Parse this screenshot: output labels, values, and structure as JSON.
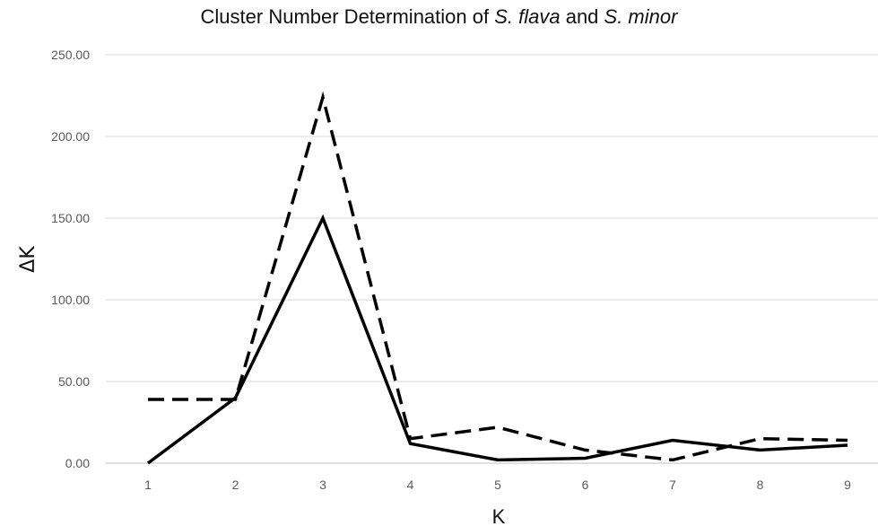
{
  "chart_data": {
    "type": "line",
    "title": {
      "part1": "Cluster Number Determination of ",
      "species1": "S. flava",
      "part2": " and ",
      "species2": "S. minor"
    },
    "xlabel": "K",
    "ylabel": "ΔK",
    "x": [
      1,
      2,
      3,
      4,
      5,
      6,
      7,
      8,
      9
    ],
    "x_tick_labels": [
      "1",
      "2",
      "3",
      "4",
      "5",
      "6",
      "7",
      "8",
      "9"
    ],
    "y_tick_labels": [
      "0.00",
      "50.00",
      "100.00",
      "150.00",
      "200.00",
      "250.00"
    ],
    "ylim": [
      0,
      250
    ],
    "grid": "horizontal",
    "series": [
      {
        "style": "solid",
        "color": "#000000",
        "values": [
          0,
          40,
          150,
          12,
          2,
          3,
          14,
          8,
          11
        ]
      },
      {
        "style": "dashed",
        "color": "#000000",
        "values": [
          39,
          39,
          224,
          15,
          22,
          8,
          2,
          15,
          14
        ]
      }
    ]
  }
}
